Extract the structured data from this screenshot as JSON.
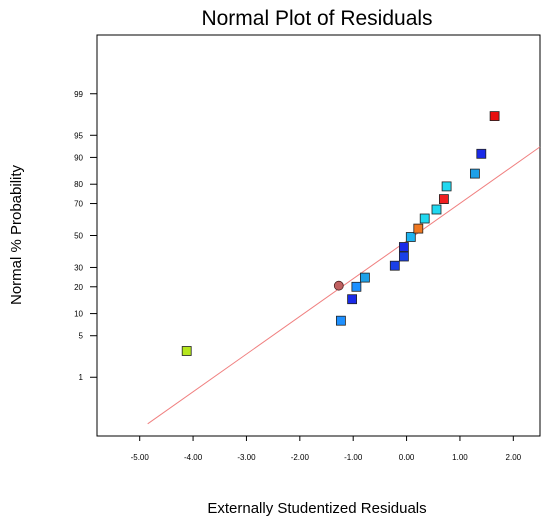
{
  "chart_data": {
    "type": "scatter",
    "title": "Normal Plot of Residuals",
    "xlabel": "Externally Studentized Residuals",
    "ylabel": "Normal % Probability",
    "x_scale": "linear",
    "y_scale": "normal-probability",
    "xlim": [
      -5.8,
      2.5
    ],
    "ylim": [
      0.05,
      99.95
    ],
    "x_ticks": [
      -5,
      -4,
      -3,
      -2,
      -1,
      0,
      1,
      2
    ],
    "x_tick_labels": [
      "-5.00",
      "-4.00",
      "-3.00",
      "-2.00",
      "-1.00",
      "0.00",
      "1.00",
      "2.00"
    ],
    "y_ticks": [
      1,
      5,
      10,
      20,
      30,
      50,
      70,
      80,
      90,
      95,
      99
    ],
    "y_tick_labels": [
      "1",
      "5",
      "10",
      "20",
      "30",
      "50",
      "70",
      "80",
      "90",
      "95",
      "99"
    ],
    "grid": false,
    "legend": "none",
    "reference_line": {
      "x": [
        -4.85,
        2.5
      ],
      "y": [
        0.1,
        92.7
      ],
      "color": "#f08080"
    },
    "points": [
      {
        "x": -4.12,
        "y": 2.9,
        "color": "#b5e61d",
        "marker": "square"
      },
      {
        "x": -1.23,
        "y": 8.1,
        "color": "#1e90ff",
        "marker": "square"
      },
      {
        "x": -1.27,
        "y": 20.5,
        "color": "#c06060",
        "marker": "circle"
      },
      {
        "x": -1.02,
        "y": 14.8,
        "color": "#1a2ae8",
        "marker": "square"
      },
      {
        "x": -0.94,
        "y": 20.0,
        "color": "#1e90ff",
        "marker": "square"
      },
      {
        "x": -0.78,
        "y": 24.5,
        "color": "#1ea0e8",
        "marker": "square"
      },
      {
        "x": -0.22,
        "y": 31.0,
        "color": "#1a40e8",
        "marker": "square"
      },
      {
        "x": -0.05,
        "y": 36.5,
        "color": "#1a40e8",
        "marker": "square"
      },
      {
        "x": -0.05,
        "y": 42.5,
        "color": "#1a2ae8",
        "marker": "square"
      },
      {
        "x": 0.08,
        "y": 49.0,
        "color": "#1eb4f0",
        "marker": "square"
      },
      {
        "x": 0.22,
        "y": 54.5,
        "color": "#f07820",
        "marker": "square"
      },
      {
        "x": 0.34,
        "y": 61.0,
        "color": "#20d8f0",
        "marker": "square"
      },
      {
        "x": 0.56,
        "y": 66.5,
        "color": "#20d8f0",
        "marker": "square"
      },
      {
        "x": 0.7,
        "y": 72.5,
        "color": "#f02020",
        "marker": "square"
      },
      {
        "x": 0.75,
        "y": 79.0,
        "color": "#20d8f0",
        "marker": "square"
      },
      {
        "x": 1.28,
        "y": 84.5,
        "color": "#1ea0e8",
        "marker": "square"
      },
      {
        "x": 1.4,
        "y": 91.0,
        "color": "#1a2ae8",
        "marker": "square"
      },
      {
        "x": 1.65,
        "y": 97.5,
        "color": "#e81010",
        "marker": "square"
      }
    ]
  }
}
